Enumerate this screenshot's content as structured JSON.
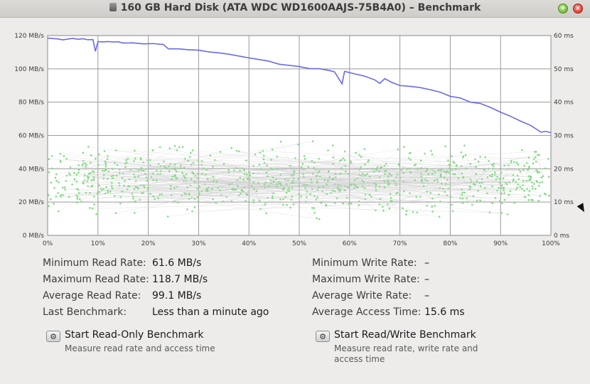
{
  "window": {
    "title": "160 GB Hard Disk (ATA WDC WD1600AAJS-75B4A0) – Benchmark",
    "disk_icon": "hard-disk-icon",
    "maximize_icon": "maximize-icon",
    "close_icon": "close-icon"
  },
  "chart_data": {
    "type": "line",
    "title": "",
    "x_ticks": [
      "0%",
      "10%",
      "20%",
      "30%",
      "40%",
      "50%",
      "60%",
      "70%",
      "80%",
      "90%",
      "100%"
    ],
    "y_left_ticks": [
      "0 MB/s",
      "20 MB/s",
      "40 MB/s",
      "60 MB/s",
      "80 MB/s",
      "100 MB/s",
      "120 MB/s"
    ],
    "y_right_ticks": [
      "0 ms",
      "10 ms",
      "20 ms",
      "30 ms",
      "40 ms",
      "50 ms",
      "60 ms"
    ],
    "x_range": [
      0,
      100
    ],
    "y_left_range": [
      0,
      120
    ],
    "y_right_range": [
      0,
      60
    ],
    "grid": true,
    "read_rate_color": "#6a6ae8",
    "access_time_color": "#7fdc7f",
    "series": [
      {
        "axis": "left",
        "points": [
          [
            0,
            118.5
          ],
          [
            1,
            118.2
          ],
          [
            2,
            118.0
          ],
          [
            3,
            117.4
          ],
          [
            4,
            117.9
          ],
          [
            5,
            118.3
          ],
          [
            6,
            117.8
          ],
          [
            7,
            118.1
          ],
          [
            8,
            117.5
          ],
          [
            9,
            117.6
          ],
          [
            9.5,
            110.5
          ],
          [
            10,
            116.4
          ],
          [
            11,
            116.2
          ],
          [
            12,
            116.4
          ],
          [
            13,
            116.1
          ],
          [
            14,
            116.3
          ],
          [
            15,
            115.5
          ],
          [
            17,
            115.6
          ],
          [
            19,
            115.0
          ],
          [
            21,
            115.2
          ],
          [
            23,
            114.6
          ],
          [
            24,
            112.0
          ],
          [
            26,
            112.0
          ],
          [
            28,
            111.5
          ],
          [
            30,
            111.2
          ],
          [
            32,
            110.2
          ],
          [
            34,
            109.6
          ],
          [
            36,
            108.8
          ],
          [
            38,
            107.7
          ],
          [
            40,
            106.6
          ],
          [
            42,
            105.6
          ],
          [
            44,
            104.6
          ],
          [
            46,
            102.8
          ],
          [
            48,
            102.1
          ],
          [
            50,
            101.4
          ],
          [
            52,
            100.2
          ],
          [
            54,
            100.1
          ],
          [
            56,
            99.0
          ],
          [
            57,
            98.2
          ],
          [
            58.5,
            91.0
          ],
          [
            59,
            98.5
          ],
          [
            61,
            97.0
          ],
          [
            63,
            95.6
          ],
          [
            65,
            93.4
          ],
          [
            66,
            91.3
          ],
          [
            67,
            94.1
          ],
          [
            68.5,
            91.7
          ],
          [
            70,
            90.0
          ],
          [
            72,
            89.5
          ],
          [
            74,
            88.8
          ],
          [
            76,
            87.5
          ],
          [
            78,
            86.0
          ],
          [
            80,
            83.5
          ],
          [
            82,
            82.5
          ],
          [
            84,
            80.0
          ],
          [
            86,
            79.2
          ],
          [
            88,
            76.8
          ],
          [
            90,
            74.0
          ],
          [
            92,
            71.5
          ],
          [
            94,
            68.6
          ],
          [
            96,
            66.0
          ],
          [
            98,
            62.0
          ],
          [
            99,
            62.5
          ],
          [
            100,
            61.6
          ]
        ]
      }
    ],
    "access_time_samples": {
      "count": 900,
      "range_ms": [
        3,
        30
      ],
      "typical_ms": [
        12,
        22
      ]
    }
  },
  "stats": {
    "min_read_label": "Minimum Read Rate:",
    "min_read_value": "61.6 MB/s",
    "max_read_label": "Maximum Read Rate:",
    "max_read_value": "118.7 MB/s",
    "avg_read_label": "Average Read Rate:",
    "avg_read_value": "99.1 MB/s",
    "last_label": "Last Benchmark:",
    "last_value": "Less than a minute ago",
    "min_write_label": "Minimum Write Rate:",
    "min_write_value": "–",
    "max_write_label": "Maximum Write Rate:",
    "max_write_value": "–",
    "avg_write_label": "Average Write Rate:",
    "avg_write_value": "–",
    "access_label": "Average Access Time:",
    "access_value": "15.6 ms"
  },
  "actions": {
    "read_only_title": "Start Read-Only Benchmark",
    "read_only_desc": "Measure read rate and access time",
    "read_write_title": "Start Read/Write Benchmark",
    "read_write_desc": "Measure read rate, write rate and access time",
    "button_icon": "gear-icon"
  }
}
